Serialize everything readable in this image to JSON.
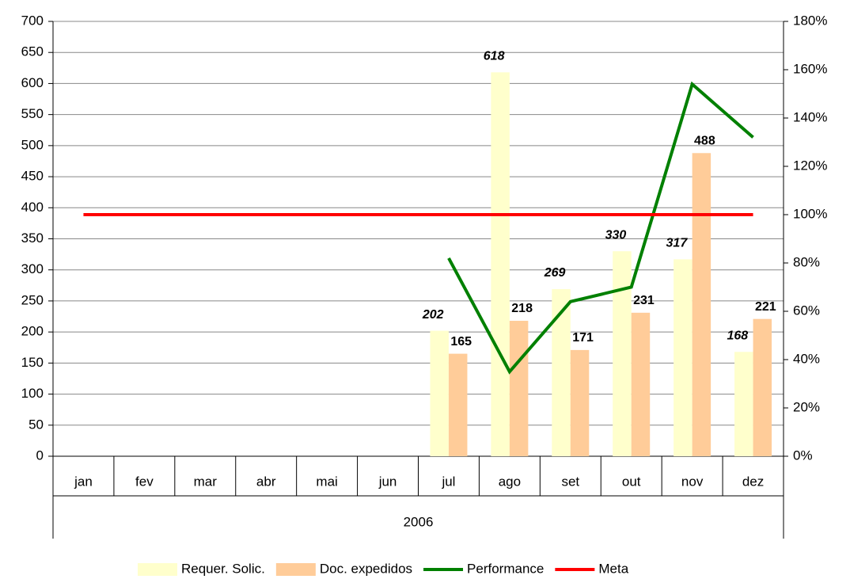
{
  "chart_data": {
    "type": "bar",
    "categories": [
      "jan",
      "fev",
      "mar",
      "abr",
      "mai",
      "jun",
      "jul",
      "ago",
      "set",
      "out",
      "nov",
      "dez"
    ],
    "x_group_label": "2006",
    "series": [
      {
        "name": "Requer. Solic.",
        "type": "bar",
        "color": "#FFFFCC",
        "label_style": "italic",
        "values": [
          null,
          null,
          null,
          null,
          null,
          null,
          202,
          618,
          269,
          330,
          317,
          168
        ]
      },
      {
        "name": "Doc. expedidos",
        "type": "bar",
        "color": "#FFCC99",
        "label_style": "normal",
        "values": [
          null,
          null,
          null,
          null,
          null,
          null,
          165,
          218,
          171,
          231,
          488,
          221
        ]
      },
      {
        "name": "Performance",
        "type": "line",
        "axis": "y2",
        "color": "#008000",
        "values": [
          null,
          null,
          null,
          null,
          null,
          null,
          82,
          35,
          64,
          70,
          154,
          132
        ]
      },
      {
        "name": "Meta",
        "type": "line",
        "axis": "y2",
        "color": "#FF0000",
        "values": [
          100,
          100,
          100,
          100,
          100,
          100,
          100,
          100,
          100,
          100,
          100,
          100
        ]
      }
    ],
    "ylim": [
      0,
      700
    ],
    "yticks": [
      0,
      50,
      100,
      150,
      200,
      250,
      300,
      350,
      400,
      450,
      500,
      550,
      600,
      650,
      700
    ],
    "y2lim": [
      0,
      180
    ],
    "y2ticks": [
      {
        "value": 0,
        "label": "0%"
      },
      {
        "value": 20,
        "label": "20%"
      },
      {
        "value": 40,
        "label": "40%"
      },
      {
        "value": 60,
        "label": "60%"
      },
      {
        "value": 80,
        "label": "80%"
      },
      {
        "value": 100,
        "label": "100%"
      },
      {
        "value": 120,
        "label": "120%"
      },
      {
        "value": 140,
        "label": "140%"
      },
      {
        "value": 160,
        "label": "160%"
      },
      {
        "value": 180,
        "label": "180%"
      }
    ],
    "grid": true,
    "legend": "bottom"
  }
}
